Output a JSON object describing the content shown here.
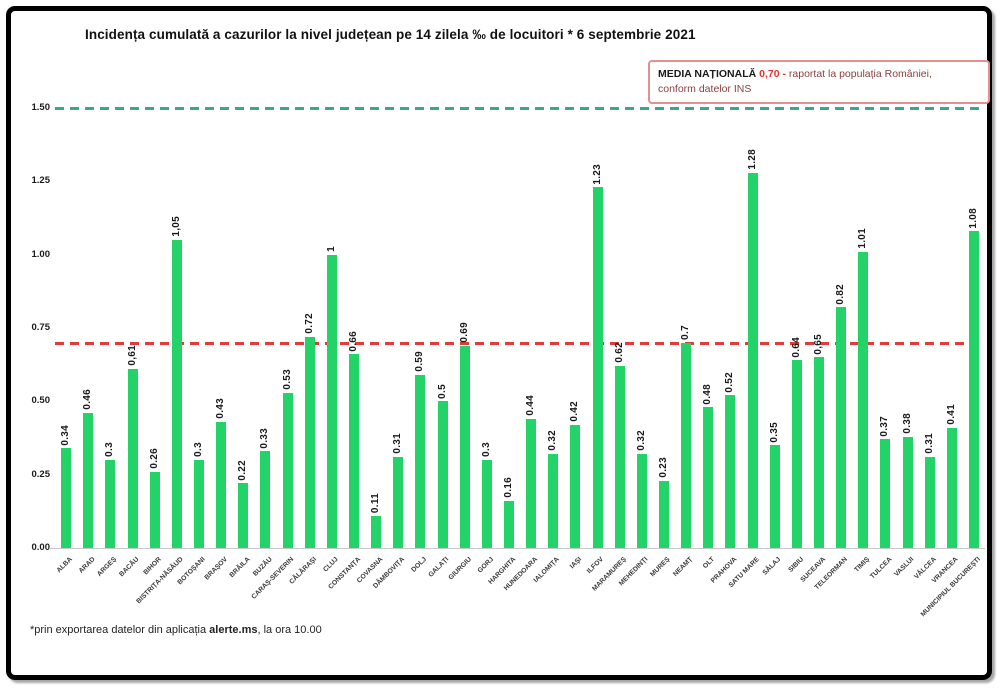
{
  "title": "Incidența cumulată a cazurilor la nivel județean pe 14 zilela ‰ de locuitori * 6 septembrie 2021",
  "legend": {
    "label": "MEDIA NAȚIONALĂ",
    "value": "0,70",
    "dash": "-",
    "text1": "raportat la populația României,",
    "text2": "conform datelor INS",
    "border_color": "#e49090",
    "value_color": "#e8322e",
    "text_color": "#8a4040"
  },
  "footer": {
    "prefix": "*prin exportarea datelor din aplicația ",
    "bold": "alerte.ms",
    "suffix": ", la ora 10.00"
  },
  "chart_data": {
    "type": "bar",
    "title": "Incidența cumulată a cazurilor la nivel județean pe 14 zilela ‰ de locuitori * 6 septembrie 2021",
    "xlabel": "",
    "ylabel": "",
    "ylim": [
      0,
      1.5
    ],
    "grid": false,
    "legend_position": "top-right",
    "bar_color": "#24d368",
    "categories": [
      "ALBA",
      "ARAD",
      "ARGEȘ",
      "BACĂU",
      "BIHOR",
      "BISTRIȚA-NĂSĂUD",
      "BOTOȘANI",
      "BRAȘOV",
      "BRĂILA",
      "BUZĂU",
      "CARAȘ-SEVERIN",
      "CĂLĂRAȘI",
      "CLUJ",
      "CONSTANȚA",
      "COVASNA",
      "DÂMBOVIȚA",
      "DOLJ",
      "GALAȚI",
      "GIURGIU",
      "GORJ",
      "HARGHITA",
      "HUNEDOARA",
      "IALOMIȚA",
      "IAȘI",
      "ILFOV",
      "MARAMUREȘ",
      "MEHEDINȚI",
      "MUREȘ",
      "NEAMȚ",
      "OLT",
      "PRAHOVA",
      "SATU MARE",
      "SĂLAJ",
      "SIBIU",
      "SUCEAVA",
      "TELEORMAN",
      "TIMIȘ",
      "TULCEA",
      "VASLUI",
      "VÂLCEA",
      "VRANCEA",
      "MUNICIPIUL BUCUREȘTI"
    ],
    "values": [
      0.34,
      0.46,
      0.3,
      0.61,
      0.26,
      1.05,
      0.3,
      0.43,
      0.22,
      0.33,
      0.53,
      0.72,
      1,
      0.66,
      0.11,
      0.31,
      0.59,
      0.5,
      0.69,
      0.3,
      0.16,
      0.44,
      0.32,
      0.42,
      1.23,
      0.62,
      0.32,
      0.23,
      0.7,
      0.48,
      0.52,
      1.28,
      0.35,
      0.64,
      0.65,
      0.82,
      1.01,
      0.37,
      0.38,
      0.31,
      0.41,
      1.08
    ],
    "bar_labels": [
      "0.34",
      "0.46",
      "0.3",
      "0,61",
      "0.26",
      "1,05",
      "0.3",
      "0.43",
      "0.22",
      "0.33",
      "0.53",
      "0.72",
      "1",
      "0.66",
      "0.11",
      "0.31",
      "0.59",
      "0.5",
      "0.69",
      "0.3",
      "0.16",
      "0.44",
      "0.32",
      "0.42",
      "1.23",
      "0.62",
      "0.32",
      "0.23",
      "0.7",
      "0.48",
      "0.52",
      "1.28",
      "0.35",
      "0.64",
      "0,65",
      "0.82",
      "1.01",
      "0.37",
      "0.38",
      "0.31",
      "0.41",
      "1.08"
    ],
    "yticks": [
      {
        "value": 0,
        "label": "0.00"
      },
      {
        "value": 0.25,
        "label": "0.25"
      },
      {
        "value": 0.5,
        "label": "0.50"
      },
      {
        "value": 0.75,
        "label": "0.75"
      },
      {
        "value": 1,
        "label": "1.00"
      },
      {
        "value": 1.25,
        "label": "1.25"
      },
      {
        "value": 1.5,
        "label": "1.50"
      }
    ],
    "reference_lines": [
      {
        "name": "upper-threshold-line",
        "value": 1.5,
        "color": "#3aa883",
        "style": "dashed"
      },
      {
        "name": "media-nationala-line",
        "value": 0.7,
        "color": "#e23b3b",
        "style": "dashed"
      }
    ]
  }
}
